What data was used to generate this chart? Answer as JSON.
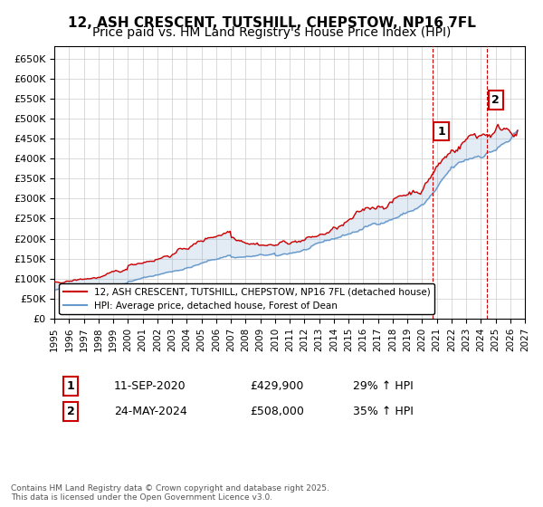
{
  "title": "12, ASH CRESCENT, TUTSHILL, CHEPSTOW, NP16 7FL",
  "subtitle": "Price paid vs. HM Land Registry's House Price Index (HPI)",
  "ylim": [
    0,
    680000
  ],
  "yticks": [
    0,
    50000,
    100000,
    150000,
    200000,
    250000,
    300000,
    350000,
    400000,
    450000,
    500000,
    550000,
    600000,
    650000
  ],
  "xlim_start": 1995.0,
  "xlim_end": 2027.0,
  "xticks": [
    1995,
    1996,
    1997,
    1998,
    1999,
    2000,
    2001,
    2002,
    2003,
    2004,
    2005,
    2006,
    2007,
    2008,
    2009,
    2010,
    2011,
    2012,
    2013,
    2014,
    2015,
    2016,
    2017,
    2018,
    2019,
    2020,
    2021,
    2022,
    2023,
    2024,
    2025,
    2026,
    2027
  ],
  "line1_color": "#cc0000",
  "line2_color": "#6699cc",
  "bg_color": "#ffffff",
  "grid_color": "#cccccc",
  "vline1_x": 2020.69,
  "vline2_x": 2024.39,
  "vline_color": "#cc0000",
  "marker1_label": "1",
  "marker2_label": "2",
  "marker1_x": 2020.69,
  "marker1_y": 429900,
  "marker2_x": 2024.39,
  "marker2_y": 508000,
  "legend1": "12, ASH CRESCENT, TUTSHILL, CHEPSTOW, NP16 7FL (detached house)",
  "legend2": "HPI: Average price, detached house, Forest of Dean",
  "annotation1_date": "11-SEP-2020",
  "annotation1_price": "£429,900",
  "annotation1_hpi": "29% ↑ HPI",
  "annotation2_date": "24-MAY-2024",
  "annotation2_price": "£508,000",
  "annotation2_hpi": "35% ↑ HPI",
  "footer": "Contains HM Land Registry data © Crown copyright and database right 2025.\nThis data is licensed under the Open Government Licence v3.0.",
  "title_fontsize": 11,
  "subtitle_fontsize": 10
}
